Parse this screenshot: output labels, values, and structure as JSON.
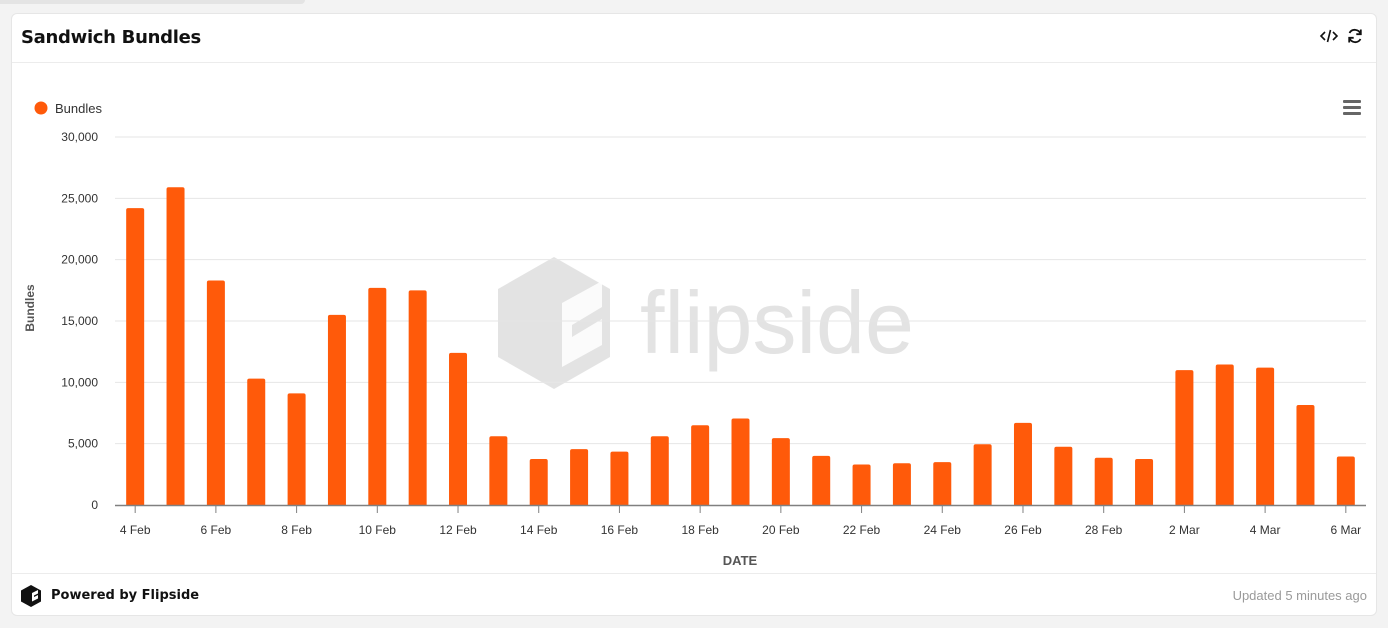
{
  "card": {
    "title": "Sandwich Bundles",
    "embed_icon": "code-icon",
    "refresh_icon": "refresh-icon",
    "menu_icon": "hamburger-menu-icon"
  },
  "footer": {
    "powered_by": "Powered by Flipside",
    "updated": "Updated 5 minutes ago",
    "logo_icon": "flipside-logo-icon"
  },
  "colors": {
    "bar": "#ff5a0a",
    "grid": "#e6e6e6",
    "axis": "#808080",
    "watermark": "#e3e3e3"
  },
  "watermark": "flipside",
  "chart_data": {
    "type": "bar",
    "xlabel": "DATE",
    "ylabel": "Bundles",
    "ylim": [
      0,
      30000
    ],
    "yticks": [
      0,
      5000,
      10000,
      15000,
      20000,
      25000,
      30000
    ],
    "ytick_labels": [
      "0",
      "5,000",
      "10,000",
      "15,000",
      "20,000",
      "25,000",
      "30,000"
    ],
    "grid": true,
    "legend": {
      "position": "top-left",
      "entries": [
        "Bundles"
      ]
    },
    "categories": [
      "4 Feb",
      "5 Feb",
      "6 Feb",
      "7 Feb",
      "8 Feb",
      "9 Feb",
      "10 Feb",
      "11 Feb",
      "12 Feb",
      "13 Feb",
      "14 Feb",
      "15 Feb",
      "16 Feb",
      "17 Feb",
      "18 Feb",
      "19 Feb",
      "20 Feb",
      "21 Feb",
      "22 Feb",
      "23 Feb",
      "24 Feb",
      "25 Feb",
      "26 Feb",
      "27 Feb",
      "28 Feb",
      "1 Mar",
      "2 Mar",
      "3 Mar",
      "4 Mar",
      "5 Mar",
      "6 Mar"
    ],
    "xtick_labels": [
      "4 Feb",
      "",
      "6 Feb",
      "",
      "8 Feb",
      "",
      "10 Feb",
      "",
      "12 Feb",
      "",
      "14 Feb",
      "",
      "16 Feb",
      "",
      "18 Feb",
      "",
      "20 Feb",
      "",
      "22 Feb",
      "",
      "24 Feb",
      "",
      "26 Feb",
      "",
      "28 Feb",
      "",
      "2 Mar",
      "",
      "4 Mar",
      "",
      "6 Mar"
    ],
    "series": [
      {
        "name": "Bundles",
        "values": [
          24200,
          25900,
          18300,
          10300,
          9100,
          15500,
          17700,
          17500,
          12400,
          5600,
          3750,
          4550,
          4350,
          5600,
          6500,
          7050,
          5450,
          4000,
          3300,
          3400,
          3500,
          4950,
          6700,
          4750,
          3850,
          3750,
          11000,
          11450,
          11200,
          8150,
          3950
        ]
      }
    ]
  }
}
